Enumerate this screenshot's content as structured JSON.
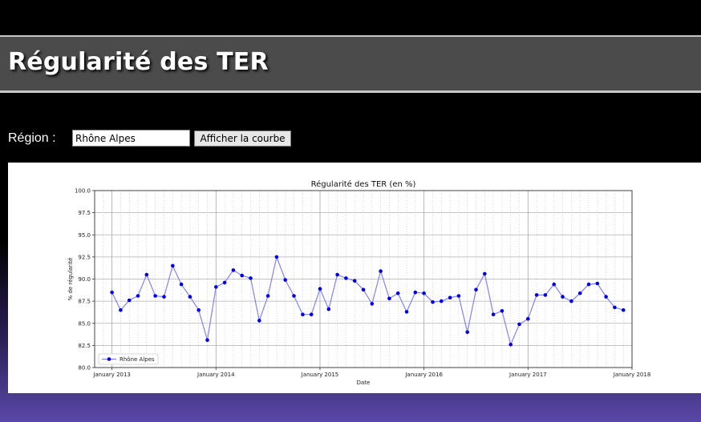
{
  "header": {
    "title": "Régularité des TER"
  },
  "form": {
    "region_label": "Région :",
    "region_value": "Rhône Alpes",
    "submit_label": "Afficher la courbe"
  },
  "colors": {
    "line": "#8080ff",
    "marker": "#0000ee",
    "header_bg": "#4b4b4b"
  },
  "chart_data": {
    "type": "line",
    "title": "Régularité des TER (en %)",
    "xlabel": "Date",
    "ylabel": "% de régularité",
    "ylim": [
      80.0,
      100.0
    ],
    "y_ticks": [
      "80.0",
      "82.5",
      "85.0",
      "87.5",
      "90.0",
      "92.5",
      "95.0",
      "97.5",
      "100.0"
    ],
    "x_ticks": [
      "January 2013",
      "January 2014",
      "January 2015",
      "January 2016",
      "January 2017",
      "January 2018"
    ],
    "grid": true,
    "legend_position": "lower-left",
    "series": [
      {
        "name": "Rhône Alpes",
        "x": [
          "2013-01",
          "2013-02",
          "2013-03",
          "2013-04",
          "2013-05",
          "2013-06",
          "2013-07",
          "2013-08",
          "2013-09",
          "2013-10",
          "2013-11",
          "2013-12",
          "2014-01",
          "2014-02",
          "2014-03",
          "2014-04",
          "2014-05",
          "2014-06",
          "2014-07",
          "2014-08",
          "2014-09",
          "2014-10",
          "2014-11",
          "2014-12",
          "2015-01",
          "2015-02",
          "2015-03",
          "2015-04",
          "2015-05",
          "2015-06",
          "2015-07",
          "2015-08",
          "2015-09",
          "2015-10",
          "2015-11",
          "2015-12",
          "2016-01",
          "2016-02",
          "2016-03",
          "2016-04",
          "2016-05",
          "2016-06",
          "2016-07",
          "2016-08",
          "2016-09",
          "2016-10",
          "2016-11",
          "2016-12",
          "2017-01",
          "2017-02",
          "2017-03",
          "2017-04",
          "2017-05",
          "2017-06",
          "2017-07",
          "2017-08",
          "2017-09",
          "2017-10",
          "2017-11",
          "2017-12"
        ],
        "values": [
          88.5,
          86.5,
          87.6,
          88.1,
          90.5,
          88.1,
          88.0,
          91.5,
          89.4,
          88.0,
          86.5,
          83.1,
          89.1,
          89.6,
          91.0,
          90.4,
          90.1,
          85.3,
          88.1,
          92.5,
          89.9,
          88.1,
          86.0,
          86.0,
          88.9,
          86.6,
          90.5,
          90.1,
          89.8,
          88.8,
          87.2,
          90.9,
          87.8,
          88.4,
          86.3,
          88.5,
          88.4,
          87.4,
          87.5,
          87.9,
          88.1,
          84.0,
          88.8,
          90.6,
          86.0,
          86.4,
          82.6,
          84.9,
          85.5,
          88.2,
          88.2,
          89.4,
          88.0,
          87.5,
          88.4,
          89.4,
          89.5,
          88.0,
          86.8,
          86.5
        ]
      }
    ]
  }
}
